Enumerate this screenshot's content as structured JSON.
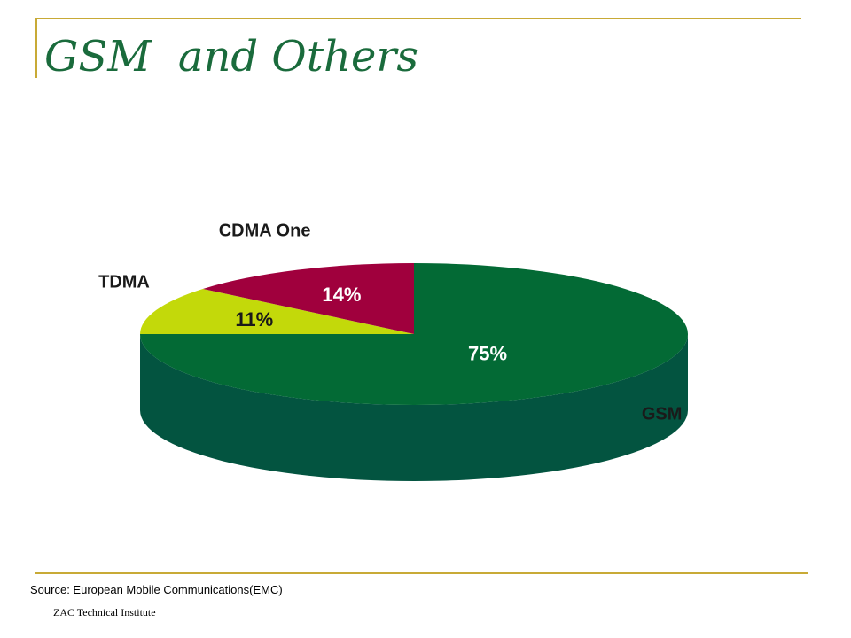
{
  "slide": {
    "title": "GSM  and Others",
    "source": "Source: European Mobile Communications(EMC)",
    "footer": "ZAC Technical Institute"
  },
  "colors": {
    "frame": "#c8aa36",
    "title": "#1a6b3c"
  },
  "chart_data": {
    "type": "pie",
    "style": "3d",
    "title": "",
    "slices": [
      {
        "label": "GSM",
        "value": 75,
        "value_label": "75%",
        "color": "#036a35",
        "side_color": "#035440",
        "value_label_color": "#ffffff"
      },
      {
        "label": "TDMA",
        "value": 11,
        "value_label": "11%",
        "color": "#c3d90a",
        "side_color": "#9fb20a",
        "value_label_color": "#1a1a1a"
      },
      {
        "label": "CDMA One",
        "value": 14,
        "value_label": "14%",
        "color": "#a0003d",
        "side_color": "#7a002f",
        "value_label_color": "#ffffff"
      }
    ]
  }
}
